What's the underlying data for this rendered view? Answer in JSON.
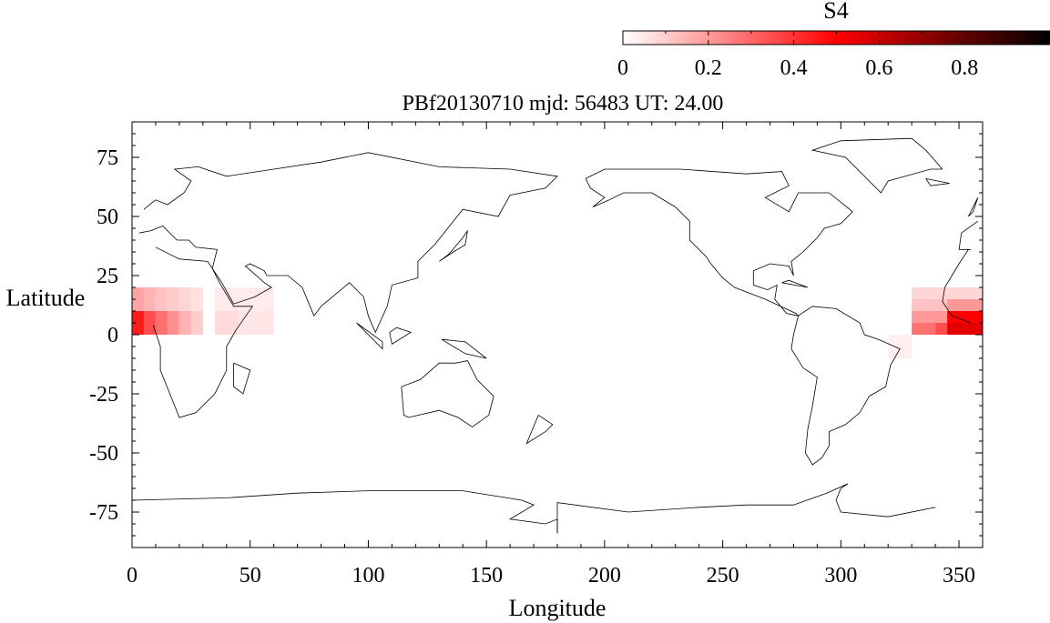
{
  "chart_data": {
    "type": "heatmap",
    "title": "PBf20130710  mjd: 56483  UT:  24.00",
    "xlabel": "Longitude",
    "ylabel": "Latitude",
    "xlim": [
      0,
      360
    ],
    "ylim": [
      -90,
      90
    ],
    "xticks": [
      0,
      50,
      100,
      150,
      200,
      250,
      300,
      350
    ],
    "yticks": [
      -75,
      -50,
      -25,
      0,
      25,
      50,
      75
    ],
    "grid": false,
    "colorbar": {
      "label": "S4",
      "range": [
        0,
        1
      ],
      "ticks": [
        0,
        0.2,
        0.4,
        0.6,
        0.8
      ],
      "colors": [
        "#ffffff",
        "#ff8080",
        "#ff0000",
        "#7a0000",
        "#000000"
      ]
    },
    "cells": [
      {
        "lon": [
          0,
          5
        ],
        "lat": [
          0,
          10
        ],
        "s4": 0.45
      },
      {
        "lon": [
          5,
          10
        ],
        "lat": [
          0,
          10
        ],
        "s4": 0.35
      },
      {
        "lon": [
          10,
          15
        ],
        "lat": [
          0,
          10
        ],
        "s4": 0.28
      },
      {
        "lon": [
          15,
          20
        ],
        "lat": [
          0,
          10
        ],
        "s4": 0.22
      },
      {
        "lon": [
          20,
          25
        ],
        "lat": [
          0,
          10
        ],
        "s4": 0.15
      },
      {
        "lon": [
          25,
          30
        ],
        "lat": [
          0,
          10
        ],
        "s4": 0.1
      },
      {
        "lon": [
          0,
          5
        ],
        "lat": [
          10,
          20
        ],
        "s4": 0.18
      },
      {
        "lon": [
          5,
          10
        ],
        "lat": [
          10,
          20
        ],
        "s4": 0.15
      },
      {
        "lon": [
          10,
          15
        ],
        "lat": [
          10,
          20
        ],
        "s4": 0.12
      },
      {
        "lon": [
          15,
          20
        ],
        "lat": [
          10,
          20
        ],
        "s4": 0.1
      },
      {
        "lon": [
          20,
          25
        ],
        "lat": [
          10,
          20
        ],
        "s4": 0.08
      },
      {
        "lon": [
          25,
          30
        ],
        "lat": [
          10,
          20
        ],
        "s4": 0.06
      },
      {
        "lon": [
          35,
          45
        ],
        "lat": [
          0,
          10
        ],
        "s4": 0.07
      },
      {
        "lon": [
          45,
          60
        ],
        "lat": [
          0,
          10
        ],
        "s4": 0.05
      },
      {
        "lon": [
          35,
          60
        ],
        "lat": [
          10,
          20
        ],
        "s4": 0.04
      },
      {
        "lon": [
          320,
          330
        ],
        "lat": [
          -10,
          0
        ],
        "s4": 0.03
      },
      {
        "lon": [
          330,
          340
        ],
        "lat": [
          0,
          5
        ],
        "s4": 0.28
      },
      {
        "lon": [
          340,
          345
        ],
        "lat": [
          0,
          5
        ],
        "s4": 0.35
      },
      {
        "lon": [
          345,
          360
        ],
        "lat": [
          0,
          5
        ],
        "s4": 0.55
      },
      {
        "lon": [
          330,
          345
        ],
        "lat": [
          5,
          10
        ],
        "s4": 0.2
      },
      {
        "lon": [
          345,
          360
        ],
        "lat": [
          5,
          10
        ],
        "s4": 0.5
      },
      {
        "lon": [
          330,
          345
        ],
        "lat": [
          10,
          15
        ],
        "s4": 0.12
      },
      {
        "lon": [
          345,
          360
        ],
        "lat": [
          10,
          15
        ],
        "s4": 0.2
      },
      {
        "lon": [
          330,
          360
        ],
        "lat": [
          15,
          20
        ],
        "s4": 0.08
      }
    ],
    "coastline_lon_lat": [
      [
        [
          -17,
          14
        ],
        [
          -16,
          20
        ],
        [
          -10,
          30
        ],
        [
          -6,
          36
        ],
        [
          10,
          37
        ],
        [
          20,
          32
        ],
        [
          32,
          31
        ],
        [
          34,
          28
        ],
        [
          37,
          22
        ],
        [
          43,
          12
        ],
        [
          51,
          12
        ],
        [
          44,
          2
        ],
        [
          40,
          -5
        ],
        [
          40,
          -15
        ],
        [
          35,
          -25
        ],
        [
          27,
          -33
        ],
        [
          20,
          -35
        ],
        [
          18,
          -30
        ],
        [
          12,
          -15
        ],
        [
          12,
          -5
        ],
        [
          9,
          4
        ],
        [
          -5,
          5
        ],
        [
          -13,
          8
        ],
        [
          -17,
          14
        ]
      ],
      [
        [
          -10,
          36
        ],
        [
          -9,
          43
        ],
        [
          -2,
          48
        ],
        [
          5,
          53
        ],
        [
          10,
          57
        ],
        [
          15,
          55
        ],
        [
          22,
          60
        ],
        [
          25,
          65
        ],
        [
          18,
          70
        ],
        [
          28,
          71
        ],
        [
          40,
          67
        ],
        [
          60,
          70
        ],
        [
          80,
          73
        ],
        [
          100,
          77
        ],
        [
          130,
          71
        ],
        [
          160,
          70
        ],
        [
          180,
          67
        ],
        [
          175,
          62
        ],
        [
          160,
          59
        ],
        [
          155,
          50
        ],
        [
          140,
          53
        ],
        [
          132,
          43
        ],
        [
          128,
          38
        ],
        [
          121,
          31
        ],
        [
          121,
          24
        ],
        [
          110,
          21
        ],
        [
          108,
          12
        ],
        [
          103,
          1
        ],
        [
          100,
          8
        ],
        [
          98,
          16
        ],
        [
          92,
          22
        ],
        [
          80,
          12
        ],
        [
          77,
          8
        ],
        [
          72,
          20
        ],
        [
          66,
          25
        ],
        [
          57,
          25
        ],
        [
          56,
          27
        ],
        [
          50,
          30
        ],
        [
          48,
          29
        ],
        [
          56,
          22
        ],
        [
          59,
          20
        ],
        [
          52,
          16
        ],
        [
          43,
          13
        ],
        [
          38,
          22
        ],
        [
          34,
          28
        ],
        [
          36,
          36
        ],
        [
          27,
          37
        ],
        [
          24,
          40
        ],
        [
          19,
          40
        ],
        [
          13,
          46
        ],
        [
          8,
          44
        ],
        [
          3,
          43
        ],
        [
          -5,
          36
        ],
        [
          -10,
          36
        ]
      ],
      [
        [
          -6,
          50
        ],
        [
          -3,
          56
        ],
        [
          -2,
          58
        ],
        [
          -4,
          52
        ],
        [
          -6,
          50
        ]
      ],
      [
        [
          -24,
          66
        ],
        [
          -14,
          64
        ],
        [
          -22,
          63
        ],
        [
          -24,
          66
        ]
      ],
      [
        [
          95,
          5
        ],
        [
          106,
          -6
        ],
        [
          106,
          -3
        ],
        [
          95,
          5
        ]
      ],
      [
        [
          109,
          1
        ],
        [
          110,
          -4
        ],
        [
          118,
          1
        ],
        [
          112,
          3
        ],
        [
          109,
          1
        ]
      ],
      [
        [
          131,
          -2
        ],
        [
          141,
          -3
        ],
        [
          150,
          -10
        ],
        [
          141,
          -8
        ],
        [
          131,
          -2
        ]
      ],
      [
        [
          114,
          -22
        ],
        [
          122,
          -19
        ],
        [
          130,
          -12
        ],
        [
          137,
          -12
        ],
        [
          142,
          -11
        ],
        [
          146,
          -19
        ],
        [
          153,
          -26
        ],
        [
          151,
          -34
        ],
        [
          144,
          -39
        ],
        [
          138,
          -35
        ],
        [
          130,
          -32
        ],
        [
          117,
          -35
        ],
        [
          115,
          -34
        ],
        [
          114,
          -22
        ]
      ],
      [
        [
          172,
          -34
        ],
        [
          178,
          -38
        ],
        [
          175,
          -41
        ],
        [
          167,
          -46
        ],
        [
          172,
          -34
        ]
      ],
      [
        [
          130,
          31
        ],
        [
          134,
          34
        ],
        [
          140,
          41
        ],
        [
          142,
          44
        ],
        [
          141,
          38
        ],
        [
          136,
          35
        ],
        [
          130,
          31
        ]
      ],
      [
        [
          43,
          -12
        ],
        [
          50,
          -15
        ],
        [
          47,
          -25
        ],
        [
          43,
          -22
        ],
        [
          43,
          -12
        ]
      ],
      [
        [
          -17,
          70
        ],
        [
          -24,
          78
        ],
        [
          -30,
          83
        ],
        [
          -60,
          82
        ],
        [
          -72,
          78
        ],
        [
          -58,
          75
        ],
        [
          -43,
          60
        ],
        [
          -40,
          65
        ],
        [
          -22,
          70
        ],
        [
          -17,
          70
        ]
      ],
      [
        [
          -168,
          66
        ],
        [
          -160,
          70
        ],
        [
          -141,
          70
        ],
        [
          -128,
          70
        ],
        [
          -100,
          68
        ],
        [
          -85,
          69
        ],
        [
          -82,
          63
        ],
        [
          -92,
          58
        ],
        [
          -82,
          52
        ],
        [
          -78,
          60
        ],
        [
          -65,
          60
        ],
        [
          -55,
          52
        ],
        [
          -60,
          47
        ],
        [
          -67,
          45
        ],
        [
          -70,
          41
        ],
        [
          -76,
          35
        ],
        [
          -81,
          31
        ],
        [
          -80,
          25
        ],
        [
          -82,
          29
        ],
        [
          -90,
          30
        ],
        [
          -97,
          27
        ],
        [
          -97,
          21
        ],
        [
          -91,
          19
        ],
        [
          -87,
          21
        ],
        [
          -88,
          15
        ],
        [
          -83,
          9
        ],
        [
          -78,
          8
        ],
        [
          -79,
          9
        ],
        [
          -92,
          15
        ],
        [
          -105,
          20
        ],
        [
          -110,
          24
        ],
        [
          -115,
          30
        ],
        [
          -117,
          33
        ],
        [
          -124,
          40
        ],
        [
          -124,
          48
        ],
        [
          -130,
          54
        ],
        [
          -140,
          60
        ],
        [
          -152,
          60
        ],
        [
          -158,
          57
        ],
        [
          -165,
          54
        ],
        [
          -160,
          58
        ],
        [
          -166,
          62
        ],
        [
          -168,
          66
        ]
      ],
      [
        [
          -78,
          8
        ],
        [
          -72,
          12
        ],
        [
          -62,
          11
        ],
        [
          -52,
          5
        ],
        [
          -50,
          0
        ],
        [
          -44,
          -2
        ],
        [
          -35,
          -6
        ],
        [
          -39,
          -13
        ],
        [
          -41,
          -22
        ],
        [
          -48,
          -26
        ],
        [
          -52,
          -33
        ],
        [
          -58,
          -38
        ],
        [
          -65,
          -41
        ],
        [
          -65,
          -47
        ],
        [
          -68,
          -52
        ],
        [
          -72,
          -55
        ],
        [
          -75,
          -50
        ],
        [
          -74,
          -40
        ],
        [
          -72,
          -30
        ],
        [
          -70,
          -18
        ],
        [
          -76,
          -14
        ],
        [
          -81,
          -6
        ],
        [
          -80,
          0
        ],
        [
          -78,
          8
        ]
      ],
      [
        [
          -85,
          22
        ],
        [
          -74,
          20
        ],
        [
          -82,
          23
        ],
        [
          -85,
          22
        ]
      ],
      [
        [
          -180,
          -84
        ],
        [
          -180,
          -71
        ],
        [
          -150,
          -75
        ],
        [
          -120,
          -73
        ],
        [
          -100,
          -72
        ],
        [
          -80,
          -72
        ],
        [
          -66,
          -67
        ],
        [
          -57,
          -63
        ],
        [
          -60,
          -65
        ],
        [
          -62,
          -70
        ],
        [
          -60,
          -75
        ],
        [
          -40,
          -77
        ],
        [
          -20,
          -73
        ],
        [
          0,
          -70
        ],
        [
          40,
          -69
        ],
        [
          70,
          -67
        ],
        [
          100,
          -66
        ],
        [
          140,
          -66
        ],
        [
          165,
          -70
        ],
        [
          170,
          -72
        ],
        [
          160,
          -78
        ],
        [
          175,
          -80
        ],
        [
          180,
          -78
        ],
        [
          180,
          -84
        ],
        [
          -180,
          -84
        ]
      ]
    ]
  }
}
